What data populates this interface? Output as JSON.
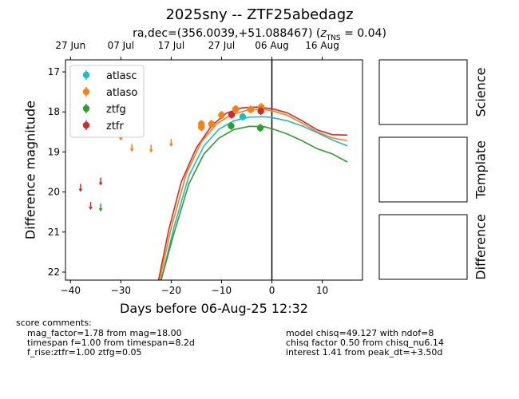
{
  "title": "2025sny -- ZTF25abedagz",
  "subtitle_prefix": "ra,dec=(356.0039,+51.088467) (",
  "subtitle_z": "z",
  "subtitle_z_sub": "TNS",
  "subtitle_suffix": " = 0.04)",
  "panels": [
    {
      "label": "Science"
    },
    {
      "label": "Template"
    },
    {
      "label": "Difference"
    }
  ],
  "comments": {
    "header": "score comments:",
    "left": [
      "mag_factor=1.78 from mag=18.00",
      "timespan f=1.00 from timespan=8.2d",
      "f_rise:ztfr=1.00 ztfg=0.05"
    ],
    "right": [
      "model chisq=49.127 with ndof=8",
      "chisq factor 0.50 from chisq_nu6.14",
      "interest 1.41 from peak_dt=+3.50d"
    ]
  },
  "chart_data": {
    "type": "scatter",
    "xlabel": "Days before 06-Aug-25 12:32",
    "ylabel": "Difference magnitude",
    "xlim": [
      -41,
      18
    ],
    "ylim": [
      22.2,
      16.7
    ],
    "y_inverted": true,
    "x_ticks": [
      -40,
      -30,
      -20,
      -10,
      0,
      10
    ],
    "y_ticks": [
      17,
      18,
      19,
      20,
      21,
      22
    ],
    "top_axis_ticks": [
      {
        "label": "27 Jun",
        "x": -40
      },
      {
        "label": "07 Jul",
        "x": -30
      },
      {
        "label": "17 Jul",
        "x": -20
      },
      {
        "label": "27 Jul",
        "x": -10
      },
      {
        "label": "06 Aug",
        "x": 0
      },
      {
        "label": "16 Aug",
        "x": 10
      }
    ],
    "vline_x": 0,
    "grid": false,
    "legend_position": "top-left",
    "colors": {
      "atlasc": "#17becf",
      "atlaso": "#ff7f0e",
      "ztfg": "#2ca02c",
      "ztfr": "#d62728"
    },
    "series": [
      {
        "name": "atlasc",
        "detections": [
          {
            "x": -5.8,
            "y": 18.12
          }
        ],
        "upper_limits": []
      },
      {
        "name": "atlaso",
        "detections": [
          {
            "x": -14.0,
            "y": 18.3
          },
          {
            "x": -14.0,
            "y": 18.38
          },
          {
            "x": -12.0,
            "y": 18.3
          },
          {
            "x": -10.0,
            "y": 18.08
          },
          {
            "x": -7.2,
            "y": 17.93
          },
          {
            "x": -4.2,
            "y": 17.94
          },
          {
            "x": -2.1,
            "y": 17.88
          }
        ],
        "upper_limits": [
          {
            "x": -30.0,
            "y": 18.6
          },
          {
            "x": -27.8,
            "y": 18.88
          },
          {
            "x": -24.0,
            "y": 18.9
          },
          {
            "x": -20.0,
            "y": 18.75
          }
        ]
      },
      {
        "name": "ztfg",
        "detections": [
          {
            "x": -8.1,
            "y": 18.35
          },
          {
            "x": -2.3,
            "y": 18.4
          }
        ],
        "upper_limits": [
          {
            "x": -34.0,
            "y": 20.37
          }
        ]
      },
      {
        "name": "ztfr",
        "detections": [
          {
            "x": -8.0,
            "y": 18.07
          },
          {
            "x": -2.2,
            "y": 17.98
          }
        ],
        "upper_limits": [
          {
            "x": -38.0,
            "y": 19.88
          },
          {
            "x": -36.0,
            "y": 20.33
          },
          {
            "x": -34.0,
            "y": 19.72
          }
        ]
      }
    ],
    "models": [
      {
        "name": "ztfr",
        "x": [
          -22.5,
          -20.5,
          -18,
          -15,
          -12,
          -9,
          -6,
          -3,
          0,
          3,
          6,
          9,
          12,
          15
        ],
        "y": [
          22.2,
          20.95,
          19.75,
          18.9,
          18.35,
          18.03,
          17.9,
          17.88,
          17.92,
          18.02,
          18.22,
          18.45,
          18.57,
          18.58
        ]
      },
      {
        "name": "atlaso",
        "x": [
          -22.3,
          -20,
          -17,
          -14,
          -11,
          -8,
          -5,
          -2,
          0,
          3,
          6,
          9,
          12,
          15
        ],
        "y": [
          22.2,
          20.9,
          19.55,
          18.75,
          18.3,
          18.07,
          17.96,
          17.93,
          17.97,
          18.08,
          18.28,
          18.5,
          18.65,
          18.72
        ]
      },
      {
        "name": "atlasc",
        "x": [
          -22.0,
          -19.5,
          -16.5,
          -13.5,
          -10.5,
          -7.5,
          -4.5,
          -1.5,
          0,
          3,
          6,
          9,
          12,
          15
        ],
        "y": [
          22.2,
          20.9,
          19.6,
          18.85,
          18.43,
          18.22,
          18.13,
          18.12,
          18.14,
          18.22,
          18.35,
          18.52,
          18.7,
          18.85
        ]
      },
      {
        "name": "ztfg",
        "x": [
          -22.0,
          -19.5,
          -16.5,
          -13.5,
          -10.5,
          -7.5,
          -4.5,
          -1.5,
          0,
          3,
          6,
          9,
          12,
          15
        ],
        "y": [
          22.2,
          21.05,
          19.8,
          19.05,
          18.65,
          18.44,
          18.36,
          18.37,
          18.42,
          18.55,
          18.72,
          18.92,
          19.05,
          19.25
        ]
      }
    ]
  }
}
